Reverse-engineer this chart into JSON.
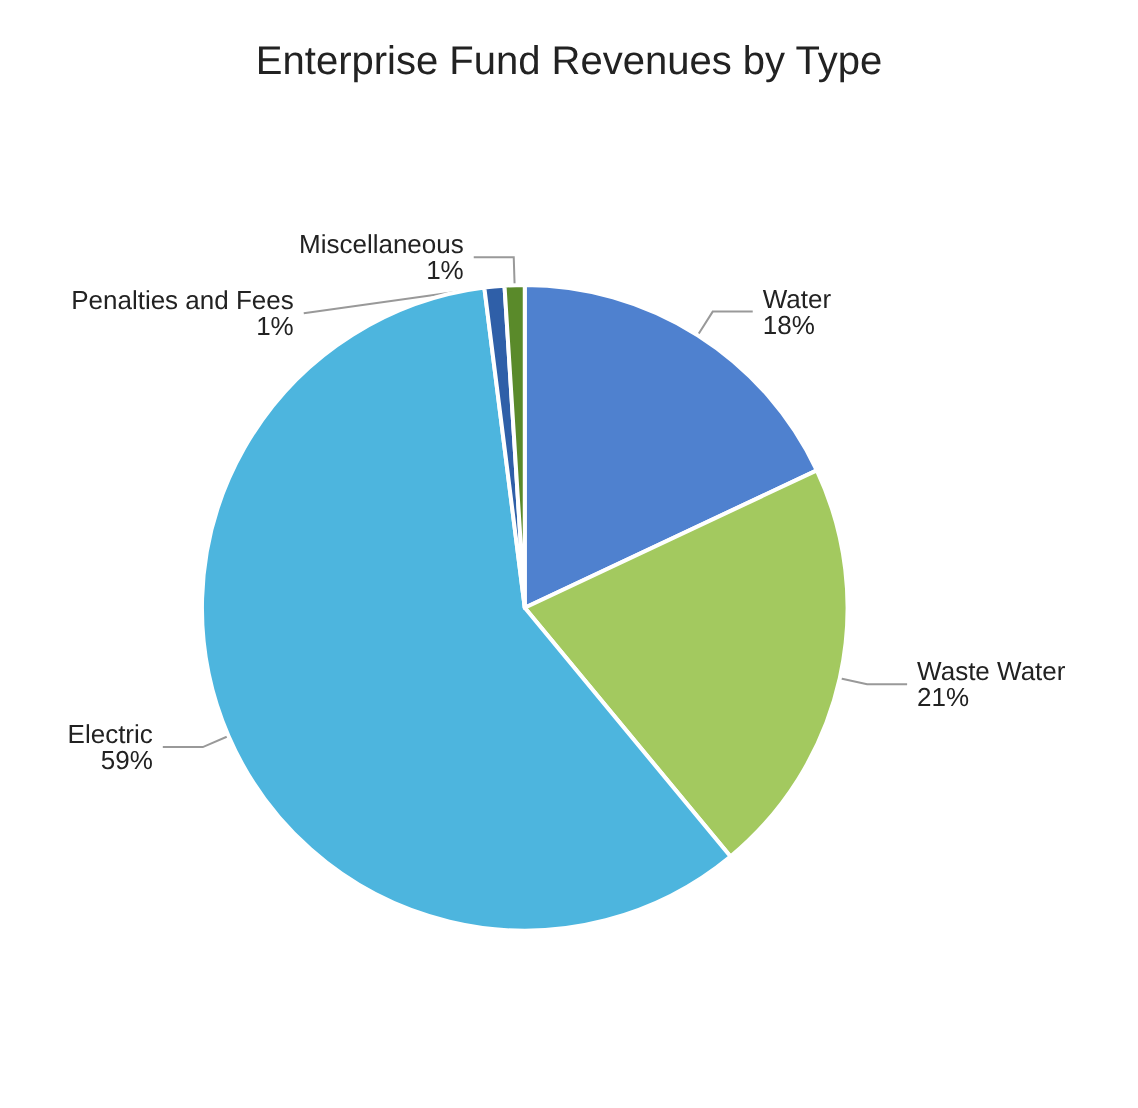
{
  "chart_data": {
    "type": "pie",
    "title": "Enterprise Fund Revenues by Type",
    "categories": [
      "Water",
      "Waste Water",
      "Electric",
      "Penalties and Fees",
      "Miscellaneous"
    ],
    "values": [
      18,
      21,
      59,
      1,
      1
    ],
    "value_labels": [
      "18%",
      "21%",
      "59%",
      "1%",
      "1%"
    ],
    "colors": [
      "#4f81cf",
      "#a3c95f",
      "#4db5de",
      "#2f5fa8",
      "#5a8a2a"
    ],
    "legend": false
  }
}
